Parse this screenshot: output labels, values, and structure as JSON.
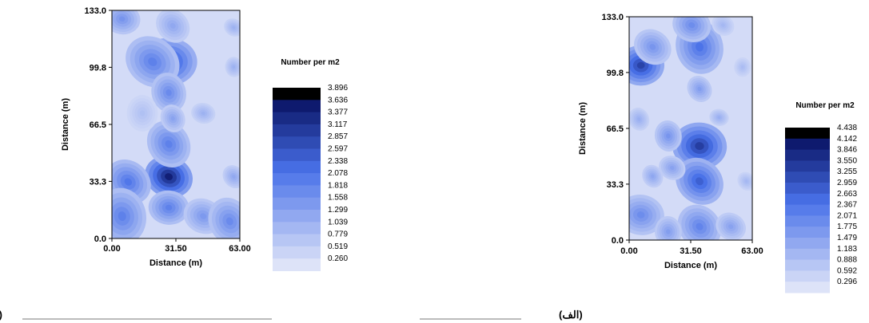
{
  "chart_data": [
    {
      "type": "heatmap",
      "panel_label": "(ب)",
      "xlabel": "Distance (m)",
      "ylabel": "Distance (m)",
      "xlim": [
        0,
        63
      ],
      "ylim": [
        0,
        133
      ],
      "x_ticks": [
        "0.00",
        "31.50",
        "63.00"
      ],
      "y_ticks": [
        "0.0",
        "33.3",
        "66.5",
        "99.8",
        "133.0"
      ],
      "legend_title": "Number per m2",
      "legend_levels": [
        "3.896",
        "3.636",
        "3.377",
        "3.117",
        "2.857",
        "2.597",
        "2.338",
        "2.078",
        "1.818",
        "1.558",
        "1.299",
        "1.039",
        "0.779",
        "0.519",
        "0.260"
      ],
      "hotspots": [
        {
          "x": 28,
          "y": 103,
          "v": 2.9,
          "r": 14
        },
        {
          "x": 20,
          "y": 103,
          "v": 2.0,
          "r": 14
        },
        {
          "x": 28,
          "y": 85,
          "v": 1.8,
          "r": 10
        },
        {
          "x": 28,
          "y": 36,
          "v": 3.8,
          "r": 12
        },
        {
          "x": 28,
          "y": 55,
          "v": 2.0,
          "r": 12
        },
        {
          "x": 28,
          "y": 18,
          "v": 2.0,
          "r": 10
        },
        {
          "x": 8,
          "y": 33,
          "v": 2.2,
          "r": 12
        },
        {
          "x": 5,
          "y": 13,
          "v": 2.0,
          "r": 14
        },
        {
          "x": 45,
          "y": 13,
          "v": 1.5,
          "r": 10
        },
        {
          "x": 58,
          "y": 10,
          "v": 1.8,
          "r": 12
        },
        {
          "x": 5,
          "y": 128,
          "v": 1.6,
          "r": 9
        },
        {
          "x": 30,
          "y": 124,
          "v": 1.2,
          "r": 9
        },
        {
          "x": 60,
          "y": 100,
          "v": 1.0,
          "r": 5
        },
        {
          "x": 60,
          "y": 123,
          "v": 1.0,
          "r": 5
        },
        {
          "x": 30,
          "y": 70,
          "v": 1.3,
          "r": 7
        },
        {
          "x": 45,
          "y": 73,
          "v": 1.0,
          "r": 6
        },
        {
          "x": 60,
          "y": 36,
          "v": 1.2,
          "r": 6
        },
        {
          "x": 15,
          "y": 73,
          "v": 0.7,
          "r": 9
        }
      ]
    },
    {
      "type": "heatmap",
      "panel_label": "(الف)",
      "xlabel": "Distance (m)",
      "ylabel": "Distance (m)",
      "xlim": [
        0,
        63
      ],
      "ylim": [
        0,
        133
      ],
      "x_ticks": [
        "0.00",
        "31.50",
        "63.00"
      ],
      "y_ticks": [
        "0.0",
        "33.3",
        "66.5",
        "99.8",
        "133.0"
      ],
      "legend_title": "Number per m2",
      "legend_levels": [
        "4.438",
        "4.142",
        "3.846",
        "3.550",
        "3.255",
        "2.959",
        "2.663",
        "2.367",
        "2.071",
        "1.775",
        "1.479",
        "1.183",
        "0.888",
        "0.592",
        "0.296"
      ],
      "hotspots": [
        {
          "x": 6,
          "y": 104,
          "v": 3.6,
          "r": 12
        },
        {
          "x": 12,
          "y": 115,
          "v": 1.8,
          "r": 10
        },
        {
          "x": 36,
          "y": 115,
          "v": 2.6,
          "r": 14
        },
        {
          "x": 32,
          "y": 128,
          "v": 2.0,
          "r": 10
        },
        {
          "x": 36,
          "y": 90,
          "v": 1.6,
          "r": 7
        },
        {
          "x": 36,
          "y": 56,
          "v": 3.7,
          "r": 14
        },
        {
          "x": 36,
          "y": 35,
          "v": 3.0,
          "r": 13
        },
        {
          "x": 20,
          "y": 62,
          "v": 1.8,
          "r": 8
        },
        {
          "x": 22,
          "y": 43,
          "v": 1.5,
          "r": 7
        },
        {
          "x": 12,
          "y": 38,
          "v": 1.4,
          "r": 6
        },
        {
          "x": 6,
          "y": 15,
          "v": 2.0,
          "r": 12
        },
        {
          "x": 36,
          "y": 8,
          "v": 2.2,
          "r": 12
        },
        {
          "x": 20,
          "y": 5,
          "v": 1.6,
          "r": 8
        },
        {
          "x": 52,
          "y": 8,
          "v": 1.5,
          "r": 8
        },
        {
          "x": 5,
          "y": 72,
          "v": 1.2,
          "r": 6
        },
        {
          "x": 46,
          "y": 73,
          "v": 1.2,
          "r": 5
        },
        {
          "x": 60,
          "y": 35,
          "v": 1.0,
          "r": 5
        },
        {
          "x": 58,
          "y": 103,
          "v": 0.9,
          "r": 5
        },
        {
          "x": 48,
          "y": 128,
          "v": 1.0,
          "r": 6
        }
      ]
    }
  ]
}
